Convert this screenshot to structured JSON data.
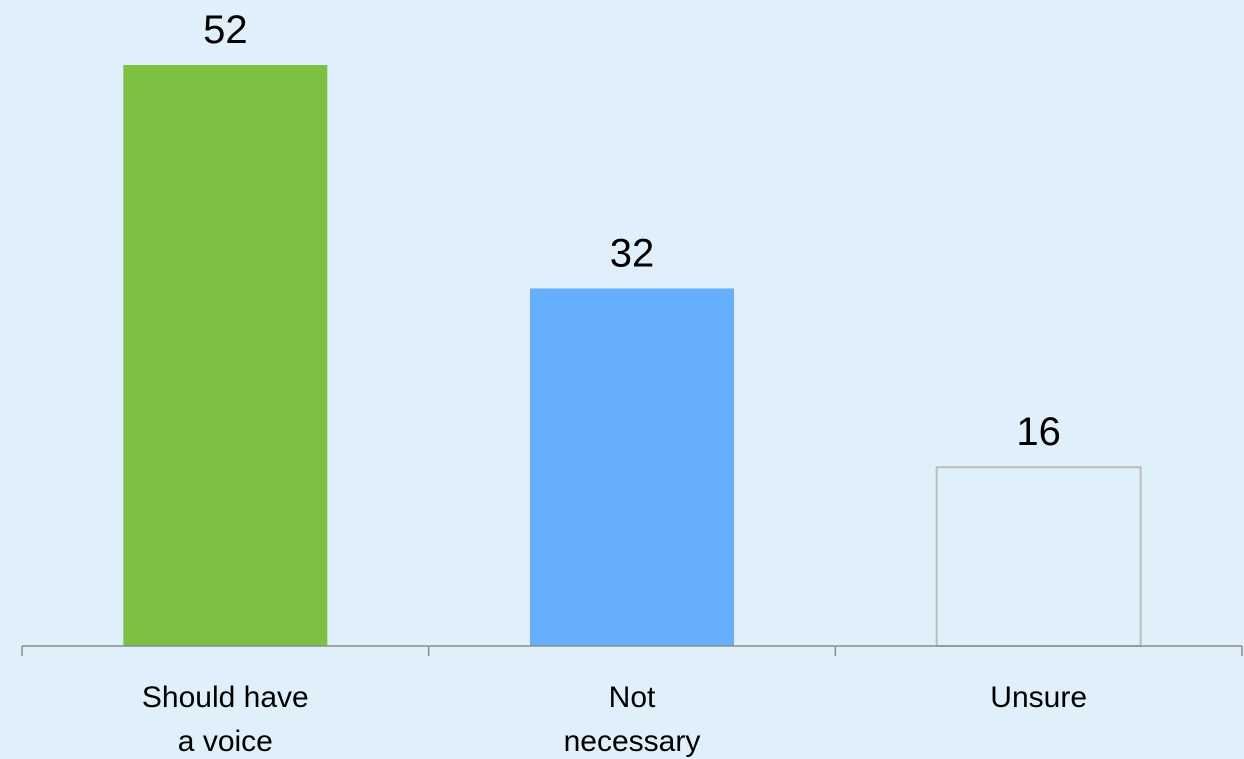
{
  "chart_data": {
    "type": "bar",
    "categories": [
      [
        "Should have",
        "a voice"
      ],
      [
        "Not",
        "necessary"
      ],
      [
        "Unsure"
      ]
    ],
    "values": [
      52,
      32,
      16
    ],
    "bar_colors": [
      "#7dc142",
      "#66afff",
      "#dff0fa"
    ],
    "bar_outline": "#bdbdbd",
    "axis_color": "#8c8c8c",
    "background": "#dff0fa",
    "ylim": [
      0,
      60
    ],
    "grid": false,
    "legend": "none"
  }
}
